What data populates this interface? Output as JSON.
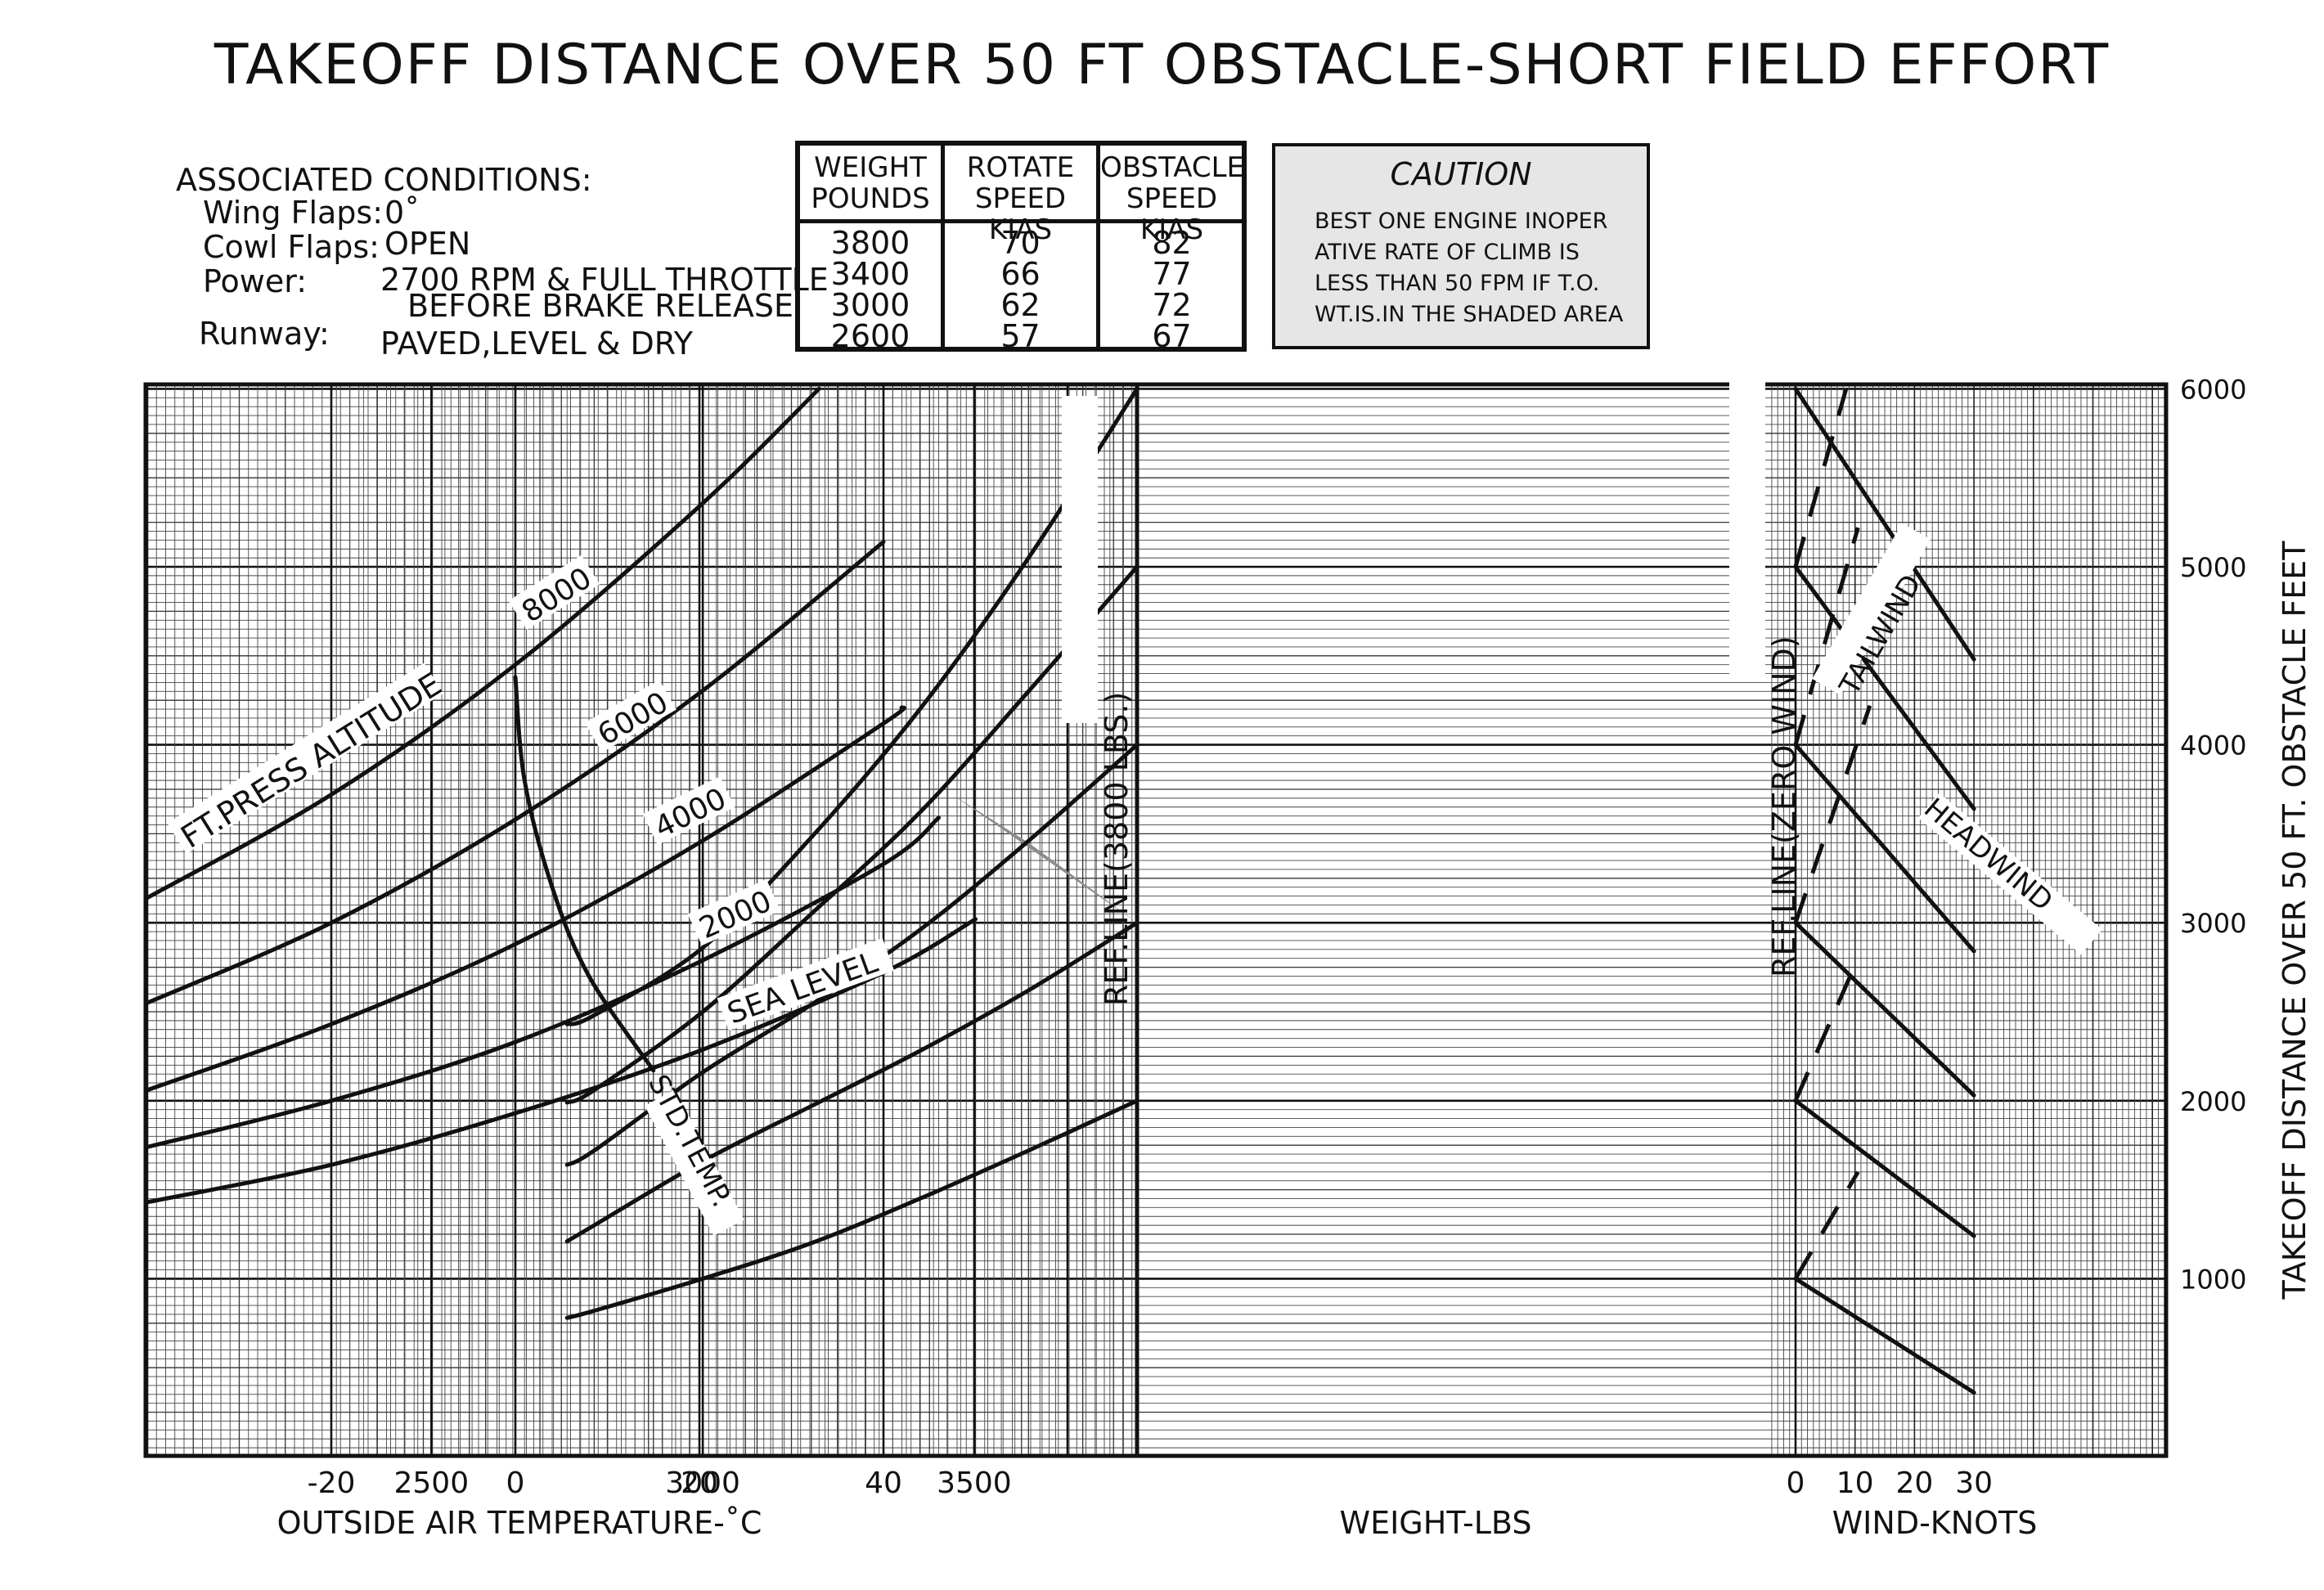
{
  "title": "TAKEOFF DISTANCE OVER 50 FT OBSTACLE-SHORT FIELD EFFORT",
  "conditions": {
    "heading": "ASSOCIATED  CONDITIONS:",
    "wing_flaps_label": "Wing Flaps:",
    "wing_flaps_value": "0˚",
    "cowl_flaps_label": "Cowl Flaps:",
    "cowl_flaps_value": "OPEN",
    "power_label": "Power:",
    "power_value_1": "2700 RPM & FULL THROTTLE",
    "power_value_2": "BEFORE BRAKE RELEASE",
    "runway_label": "Runway:",
    "runway_value": "PAVED,LEVEL & DRY"
  },
  "speed_table": {
    "headers": [
      [
        "WEIGHT",
        "POUNDS"
      ],
      [
        "ROTATE",
        "SPEED KIAS"
      ],
      [
        "OBSTACLE",
        "SPEED KIAS"
      ]
    ],
    "rows": [
      [
        "3800",
        "70",
        "82"
      ],
      [
        "3400",
        "66",
        "77"
      ],
      [
        "3000",
        "62",
        "72"
      ],
      [
        "2600",
        "57",
        "67"
      ]
    ]
  },
  "caution": {
    "title": "CAUTION",
    "lines": [
      "BEST ONE ENGINE INOPER",
      "ATIVE RATE OF CLIMB IS",
      "LESS THAN 50 FPM IF T.O.",
      "WT.IS.IN THE SHADED AREA"
    ]
  },
  "chart_data": {
    "type": "line",
    "title": "TAKEOFF DISTANCE OVER 50 FT OBSTACLE-SHORT FIELD EFFORT",
    "ylabel": "TAKEOFF DISTANCE OVER 50 FT. OBSTACLE FEET",
    "ylim": [
      0,
      6000
    ],
    "yticks": [
      "1000",
      "2000",
      "3000",
      "4000",
      "5000",
      "6000"
    ],
    "grid": true,
    "shade_color": "#8c8c8c",
    "panels": {
      "temperature": {
        "xlabel": "OUTSIDE AIR TEMPERATURE-˚C",
        "xlim": [
          -40,
          50
        ],
        "xticks": [
          "-20",
          "0",
          "20",
          "40"
        ],
        "series_label": "FT.PRESS ALTITUDE",
        "series": [
          {
            "name": "SEA LEVEL",
            "x": [
              -40,
              -20,
              0,
              20,
              40,
              50
            ],
            "y": [
              1430,
              1640,
              1930,
              2280,
              2720,
              3020
            ]
          },
          {
            "name": "2000",
            "x": [
              -40,
              -20,
              0,
              20,
              40,
              46
            ],
            "y": [
              1740,
              2000,
              2330,
              2780,
              3330,
              3590
            ]
          },
          {
            "name": "4000",
            "x": [
              -40,
              -20,
              0,
              20,
              40,
              42
            ],
            "y": [
              2060,
              2430,
              2880,
              3450,
              4120,
              4210
            ]
          },
          {
            "name": "6000",
            "x": [
              -40,
              -20,
              0,
              20,
              40
            ],
            "y": [
              2550,
              3000,
              3580,
              4290,
              5140
            ]
          },
          {
            "name": "8000",
            "x": [
              -40,
              -20,
              0,
              20,
              33
            ],
            "y": [
              3140,
              3720,
              4450,
              5340,
              6000
            ]
          }
        ],
        "std_temp": {
          "label": "STD.TEMP.",
          "x": [
            0,
            1,
            4,
            8,
            15
          ],
          "y": [
            4380,
            3800,
            3200,
            2700,
            2170
          ]
        }
      },
      "weight": {
        "xlabel": "WEIGHT-LBS",
        "xlim": [
          3800,
          2350
        ],
        "xticks": [
          "3500",
          "3000",
          "2500"
        ],
        "ref_label": "REF.LINE(3800 LBS.)",
        "series": [
          {
            "x": [
              3800,
              3600,
              3400,
              3200,
              3000,
              2800,
              2750
            ],
            "y": [
              6000,
              5050,
              4200,
              3480,
              2860,
              2480,
              2430
            ]
          },
          {
            "x": [
              3800,
              3600,
              3400,
              3200,
              3000,
              2800,
              2750
            ],
            "y": [
              5000,
              4300,
              3620,
              3050,
              2500,
              2060,
              1990
            ]
          },
          {
            "x": [
              3800,
              3600,
              3400,
              3200,
              3000,
              2800,
              2750
            ],
            "y": [
              4000,
              3460,
              2960,
              2540,
              2160,
              1720,
              1640
            ]
          },
          {
            "x": [
              3800,
              3600,
              3400,
              3200,
              3000,
              2800,
              2750
            ],
            "y": [
              3000,
              2620,
              2280,
              1970,
              1660,
              1300,
              1210
            ]
          },
          {
            "x": [
              3800,
              3600,
              3400,
              3200,
              3000,
              2800,
              2750
            ],
            "y": [
              2000,
              1720,
              1450,
              1200,
              1000,
              820,
              780
            ]
          }
        ],
        "shaded_area": {
          "x": [
            3800,
            3800,
            3600,
            3460,
            3800
          ],
          "y": [
            6000,
            3000,
            3450,
            3720,
            3000
          ]
        }
      },
      "wind": {
        "xlabel": "WIND-KNOTS",
        "xlim": [
          0,
          40
        ],
        "xticks": [
          "0",
          "10",
          "20",
          "30"
        ],
        "ref_label": "REF.LINE(ZERO WIND)",
        "headwind_label": "HEADWIND",
        "tailwind_label": "TAILWIND",
        "headwind": [
          {
            "x": [
              0,
              30
            ],
            "y": [
              6000,
              4480
            ]
          },
          {
            "x": [
              0,
              30
            ],
            "y": [
              5000,
              3640
            ]
          },
          {
            "x": [
              0,
              30
            ],
            "y": [
              4000,
              2840
            ]
          },
          {
            "x": [
              0,
              30
            ],
            "y": [
              3000,
              2030
            ]
          },
          {
            "x": [
              0,
              30
            ],
            "y": [
              2000,
              1240
            ]
          },
          {
            "x": [
              0,
              30
            ],
            "y": [
              1000,
              360
            ]
          }
        ],
        "tailwind": [
          {
            "x": [
              0,
              8.5
            ],
            "y": [
              5000,
              6000
            ]
          },
          {
            "x": [
              0,
              10.5
            ],
            "y": [
              4000,
              5220
            ]
          },
          {
            "x": [
              0,
              12.5
            ],
            "y": [
              3000,
              4220
            ]
          },
          {
            "x": [
              0,
              10.5
            ],
            "y": [
              2000,
              2800
            ]
          },
          {
            "x": [
              0,
              10.5
            ],
            "y": [
              1000,
              1600
            ]
          }
        ]
      }
    }
  }
}
